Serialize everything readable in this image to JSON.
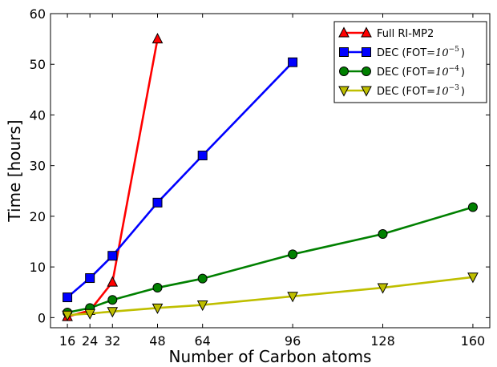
{
  "chart_data": {
    "type": "line",
    "xlabel": "Number of Carbon atoms",
    "ylabel": "Time [hours]",
    "xticks": [
      16,
      24,
      32,
      48,
      64,
      96,
      128,
      160
    ],
    "yticks": [
      0,
      10,
      20,
      30,
      40,
      50,
      60
    ],
    "xlim": [
      10,
      166
    ],
    "ylim": [
      -2,
      60
    ],
    "grid": false,
    "legend_position": "top-right",
    "series": [
      {
        "name": "Full RI-MP2",
        "legend_prefix": "Full RI-MP2",
        "legend_math": "",
        "legend_exp": "",
        "legend_suffix": "",
        "color": "#ff0000",
        "marker": "triangle-up",
        "x": [
          16,
          24,
          32,
          48
        ],
        "y": [
          0.2,
          1.4,
          7.0,
          55.0
        ]
      },
      {
        "name": "DEC (FOT=10^-5)",
        "legend_prefix": "DEC (FOT",
        "legend_math": "=10",
        "legend_exp": "−5",
        "legend_suffix": ")",
        "color": "#0000ff",
        "marker": "square",
        "x": [
          16,
          24,
          32,
          48,
          64,
          96
        ],
        "y": [
          4.0,
          7.8,
          12.2,
          22.7,
          32.0,
          50.4
        ]
      },
      {
        "name": "DEC (FOT=10^-4)",
        "legend_prefix": "DEC (FOT",
        "legend_math": "=10",
        "legend_exp": "−4",
        "legend_suffix": ")",
        "color": "#008000",
        "marker": "circle",
        "x": [
          16,
          24,
          32,
          48,
          64,
          96,
          128,
          160
        ],
        "y": [
          1.0,
          1.9,
          3.5,
          5.9,
          7.7,
          12.5,
          16.5,
          21.8
        ]
      },
      {
        "name": "DEC (FOT=10^-3)",
        "legend_prefix": "DEC (FOT",
        "legend_math": "=10",
        "legend_exp": "−3",
        "legend_suffix": ")",
        "color": "#bfbf00",
        "marker": "triangle-down",
        "x": [
          16,
          24,
          32,
          48,
          64,
          96,
          128,
          160
        ],
        "y": [
          0.5,
          0.8,
          1.2,
          1.9,
          2.5,
          4.2,
          5.9,
          8.0
        ]
      }
    ]
  }
}
